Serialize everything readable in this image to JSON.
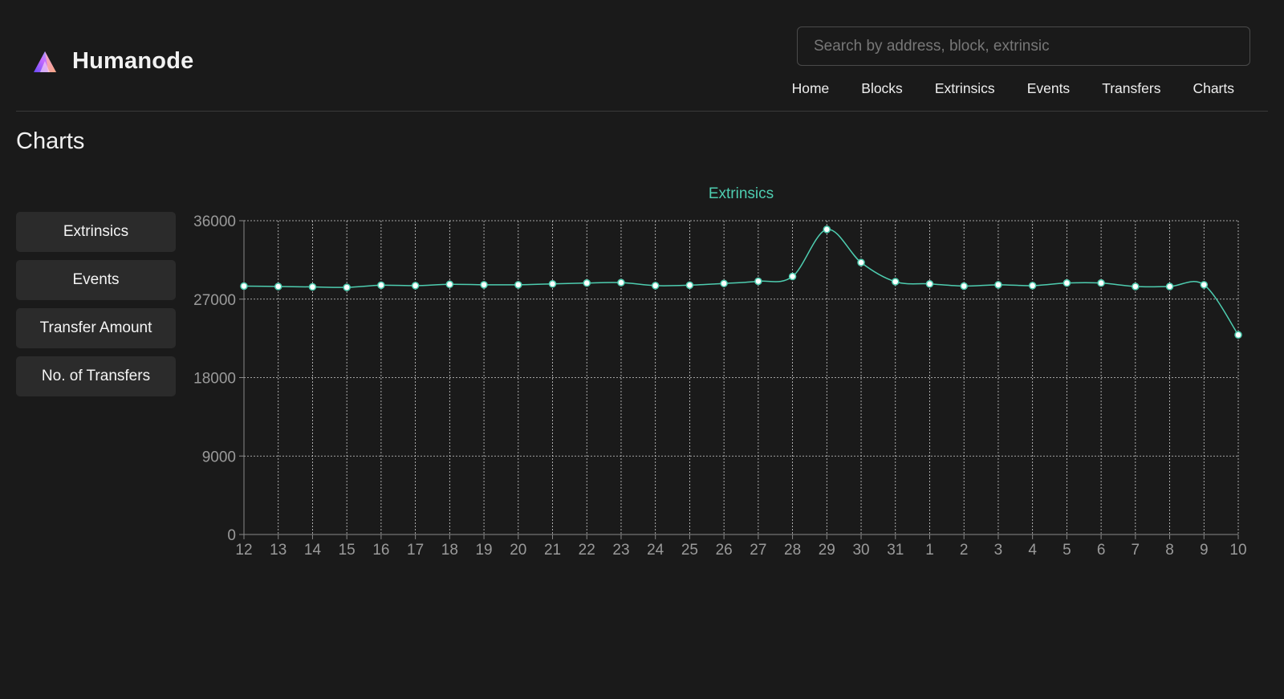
{
  "app": {
    "name": "Humanode"
  },
  "search": {
    "placeholder": "Search by address, block, extrinsic"
  },
  "nav": {
    "items": [
      "Home",
      "Blocks",
      "Extrinsics",
      "Events",
      "Transfers",
      "Charts"
    ]
  },
  "page": {
    "title": "Charts"
  },
  "sidebar": {
    "items": [
      "Extrinsics",
      "Events",
      "Transfer Amount",
      "No. of Transfers"
    ]
  },
  "colors": {
    "background": "#1a1a1a",
    "accent": "#4ecdb0",
    "grid": "#cfcfcf",
    "tick_text": "#9a9a9a",
    "button_bg": "#2b2b2b"
  },
  "chart_data": {
    "type": "line",
    "title": "Extrinsics",
    "xlabel": "",
    "ylabel": "",
    "ylim": [
      0,
      36000
    ],
    "yticks": [
      0,
      9000,
      18000,
      27000,
      36000
    ],
    "grid": true,
    "smooth": true,
    "categories": [
      "12",
      "13",
      "14",
      "15",
      "16",
      "17",
      "18",
      "19",
      "20",
      "21",
      "22",
      "23",
      "24",
      "25",
      "26",
      "27",
      "28",
      "29",
      "30",
      "31",
      "1",
      "2",
      "3",
      "4",
      "5",
      "6",
      "7",
      "8",
      "9",
      "10"
    ],
    "series": [
      {
        "values": [
          28500,
          28450,
          28400,
          28350,
          28600,
          28550,
          28700,
          28650,
          28650,
          28750,
          28850,
          28900,
          28550,
          28600,
          28800,
          29050,
          29600,
          35000,
          31200,
          29000,
          28750,
          28500,
          28650,
          28550,
          28850,
          28850,
          28450,
          28450,
          28650,
          22900
        ]
      }
    ]
  }
}
